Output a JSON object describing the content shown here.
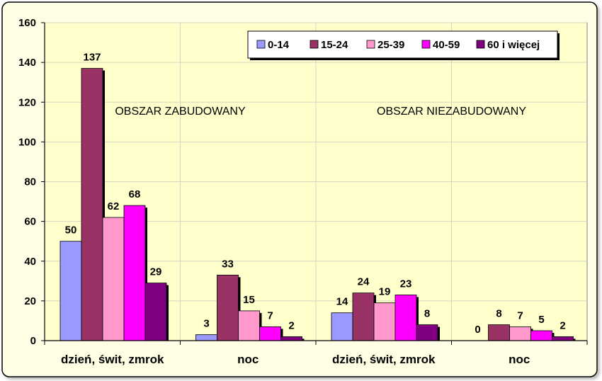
{
  "chart_data": {
    "type": "bar",
    "categories": [
      "dzień, świt, zmrok",
      "noc",
      "dzień, świt, zmrok",
      "noc"
    ],
    "groups": [
      "OBSZAR ZABUDOWANY",
      "OBSZAR NIEZABUDOWANY"
    ],
    "series": [
      {
        "name": "0-14",
        "color": "#9999FF",
        "values": [
          50,
          3,
          14,
          0
        ]
      },
      {
        "name": "15-24",
        "color": "#993366",
        "values": [
          137,
          33,
          24,
          8
        ]
      },
      {
        "name": "25-39",
        "color": "#FF99CC",
        "values": [
          62,
          15,
          19,
          7
        ]
      },
      {
        "name": "40-59",
        "color": "#FF00FF",
        "values": [
          68,
          7,
          23,
          5
        ]
      },
      {
        "name": "60 i więcej",
        "color": "#800080",
        "values": [
          29,
          2,
          8,
          2
        ]
      }
    ],
    "yticks": [
      0,
      20,
      40,
      60,
      80,
      100,
      120,
      140,
      160
    ],
    "ylim": [
      0,
      160
    ],
    "grid": true,
    "legend_position": "top-right",
    "plot_background": "#FFFFCC",
    "frame_background": "#FFFFE6"
  }
}
